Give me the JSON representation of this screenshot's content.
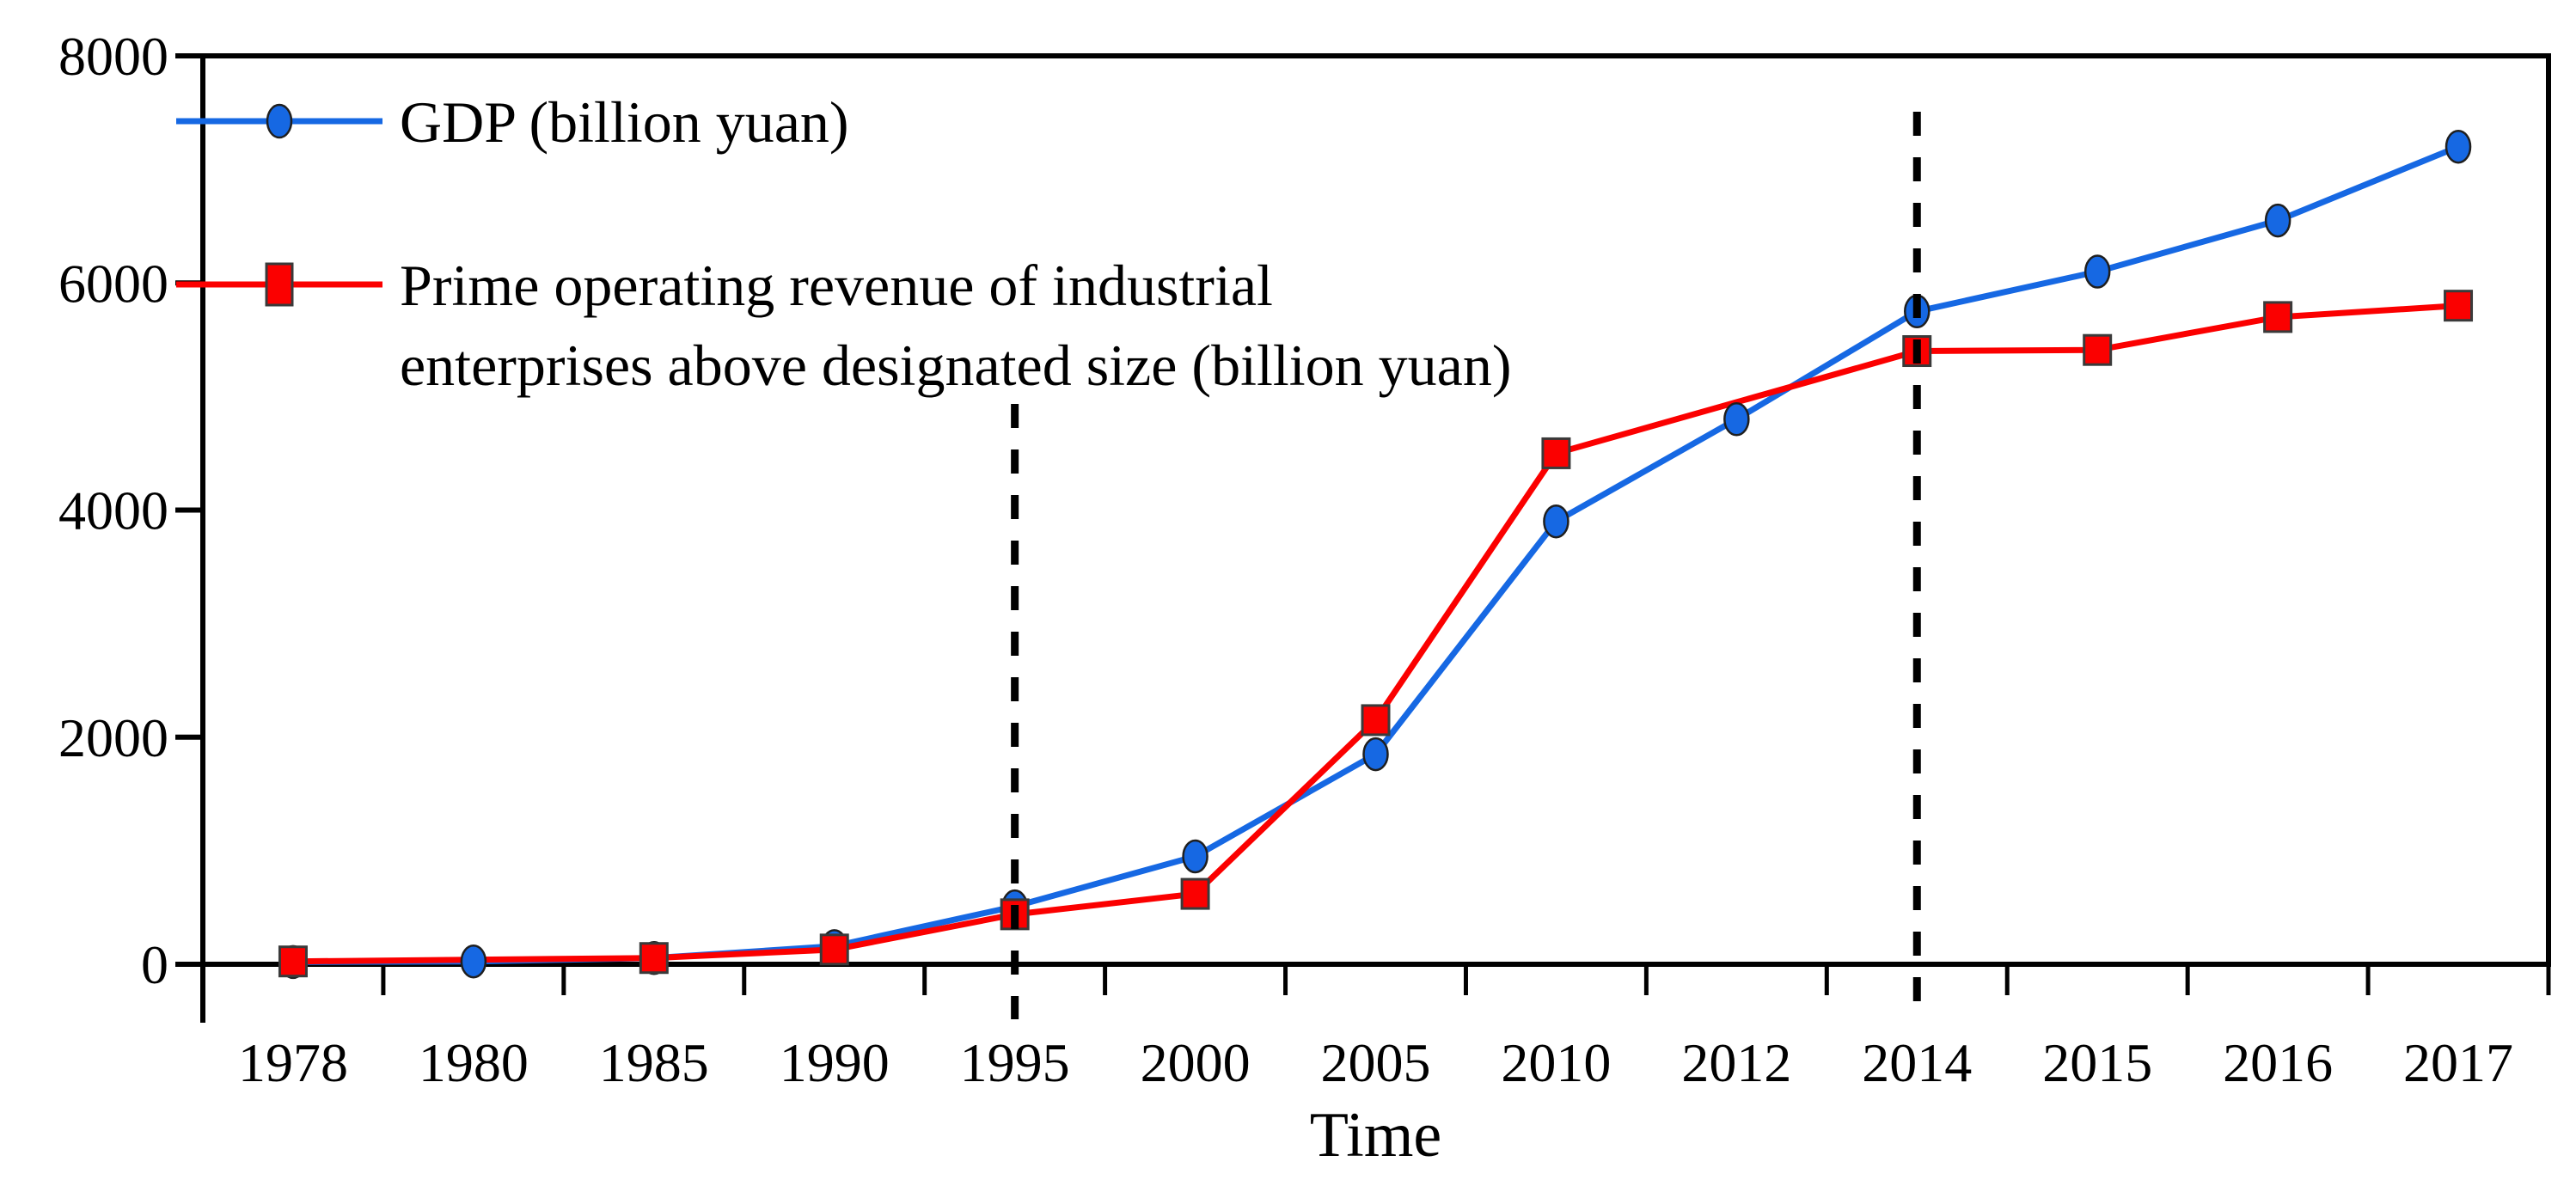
{
  "figure": {
    "background": "#ffffff",
    "axis_color": "#000000",
    "marker_outline": "#3a3a3a"
  },
  "chart_data": {
    "type": "line",
    "title": "",
    "xlabel": "Time",
    "ylabel": "",
    "ylim": [
      0,
      8000
    ],
    "yticks": [
      "0",
      "2000",
      "4000",
      "6000",
      "8000"
    ],
    "grid": false,
    "legend_position": "top-left",
    "categories": [
      "1978",
      "1980",
      "1985",
      "1990",
      "1995",
      "2000",
      "2005",
      "2010",
      "2012",
      "2014",
      "2015",
      "2016",
      "2017"
    ],
    "series": [
      {
        "name": "GDP (billion yuan)",
        "legend_lines": [
          "GDP (billion yuan)"
        ],
        "color": "#1668e3",
        "marker": "circle",
        "values": [
          20,
          25,
          55,
          160,
          510,
          950,
          1850,
          3900,
          4800,
          5750,
          6100,
          6550,
          7200
        ]
      },
      {
        "name": "Prime operating revenue of industrial enterprises above designated size (billion yuan)",
        "legend_lines": [
          "Prime operating revenue of industrial",
          "enterprises above designated size (billion yuan)"
        ],
        "color": "#fb0000",
        "marker": "square",
        "values": [
          25,
          null,
          55,
          130,
          440,
          620,
          2150,
          4500,
          null,
          5400,
          5410,
          5700,
          5800
        ]
      }
    ],
    "reference_lines": [
      {
        "category": "1995",
        "style": "dashed",
        "color": "#000000"
      },
      {
        "category": "2014",
        "style": "dashed",
        "color": "#000000"
      }
    ]
  }
}
